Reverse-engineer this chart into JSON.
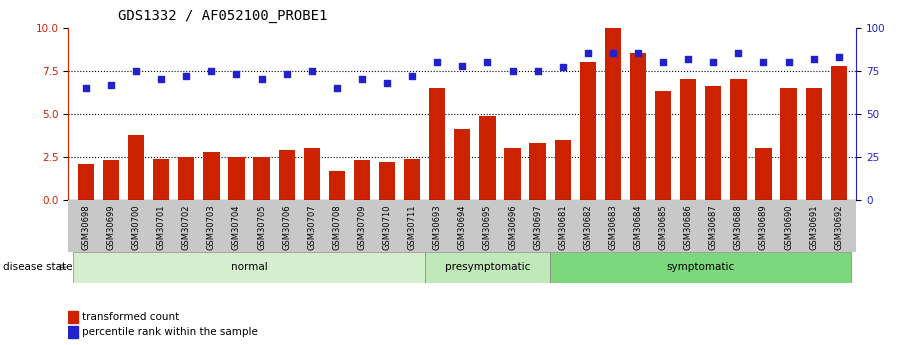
{
  "title": "GDS1332 / AF052100_PROBE1",
  "samples": [
    "GSM30698",
    "GSM30699",
    "GSM30700",
    "GSM30701",
    "GSM30702",
    "GSM30703",
    "GSM30704",
    "GSM30705",
    "GSM30706",
    "GSM30707",
    "GSM30708",
    "GSM30709",
    "GSM30710",
    "GSM30711",
    "GSM30693",
    "GSM30694",
    "GSM30695",
    "GSM30696",
    "GSM30697",
    "GSM30681",
    "GSM30682",
    "GSM30683",
    "GSM30684",
    "GSM30685",
    "GSM30686",
    "GSM30687",
    "GSM30688",
    "GSM30689",
    "GSM30690",
    "GSM30691",
    "GSM30692"
  ],
  "bar_values": [
    2.1,
    2.3,
    3.8,
    2.4,
    2.5,
    2.8,
    2.5,
    2.5,
    2.9,
    3.0,
    1.7,
    2.3,
    2.2,
    2.4,
    6.5,
    4.1,
    4.9,
    3.0,
    3.3,
    3.5,
    8.0,
    10.0,
    8.5,
    6.3,
    7.0,
    6.6,
    7.0,
    3.0,
    6.5,
    6.5,
    7.8
  ],
  "dot_values": [
    65,
    67,
    75,
    70,
    72,
    75,
    73,
    70,
    73,
    75,
    65,
    70,
    68,
    72,
    80,
    78,
    80,
    75,
    75,
    77,
    85,
    85,
    85,
    80,
    82,
    80,
    85,
    80,
    80,
    82,
    83
  ],
  "groups": [
    {
      "name": "normal",
      "start": 0,
      "end": 13,
      "color": "#d4eece"
    },
    {
      "name": "presymptomatic",
      "start": 14,
      "end": 18,
      "color": "#c0e8b8"
    },
    {
      "name": "symptomatic",
      "start": 19,
      "end": 30,
      "color": "#7cd87c"
    }
  ],
  "bar_color": "#cc2200",
  "dot_color": "#2222cc",
  "ylim_left": [
    0,
    10
  ],
  "ylim_right": [
    0,
    100
  ],
  "yticks_left": [
    0,
    2.5,
    5.0,
    7.5,
    10
  ],
  "yticks_right": [
    0,
    25,
    50,
    75,
    100
  ],
  "hlines": [
    2.5,
    5.0,
    7.5
  ],
  "title_fontsize": 10,
  "tick_bg_color": "#c8c8c8",
  "background_color": "#ffffff"
}
